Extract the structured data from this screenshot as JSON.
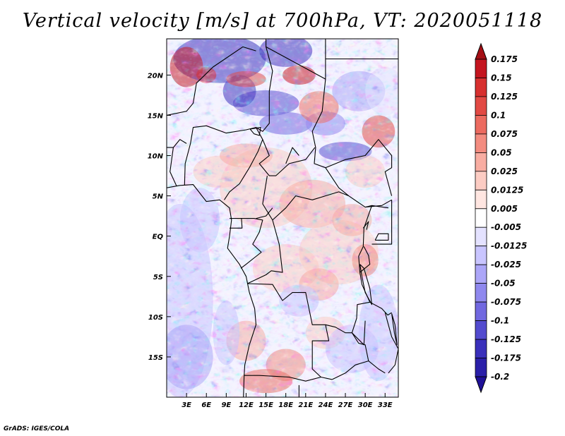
{
  "title": "Vertical velocity [m/s] at 700hPa, VT: 2020051118",
  "footer": "GrADS: IGES/COLA",
  "map": {
    "lon_range": [
      0,
      35
    ],
    "lat_range": [
      -20,
      24.5
    ],
    "lon_ticks": [
      {
        "value": 3,
        "label": "3E"
      },
      {
        "value": 6,
        "label": "6E"
      },
      {
        "value": 9,
        "label": "9E"
      },
      {
        "value": 12,
        "label": "12E"
      },
      {
        "value": 15,
        "label": "15E"
      },
      {
        "value": 18,
        "label": "18E"
      },
      {
        "value": 21,
        "label": "21E"
      },
      {
        "value": 24,
        "label": "24E"
      },
      {
        "value": 27,
        "label": "27E"
      },
      {
        "value": 30,
        "label": "30E"
      },
      {
        "value": 33,
        "label": "33E"
      }
    ],
    "lat_ticks": [
      {
        "value": 20,
        "label": "20N"
      },
      {
        "value": 15,
        "label": "15N"
      },
      {
        "value": 10,
        "label": "10N"
      },
      {
        "value": 5,
        "label": "5N"
      },
      {
        "value": 0,
        "label": "EQ"
      },
      {
        "value": -5,
        "label": "5S"
      },
      {
        "value": -10,
        "label": "10S"
      },
      {
        "value": -15,
        "label": "15S"
      }
    ]
  },
  "colorbar": {
    "levels": [
      "0.175",
      "0.15",
      "0.125",
      "0.1",
      "0.075",
      "0.05",
      "0.025",
      "0.0125",
      "0.005",
      "-0.005",
      "-0.0125",
      "-0.025",
      "-0.05",
      "-0.075",
      "-0.1",
      "-0.125",
      "-0.175",
      "-0.2"
    ],
    "colors": [
      "#a50f15",
      "#c4151f",
      "#d7302f",
      "#e24a44",
      "#ec6b60",
      "#f38c80",
      "#f8ada2",
      "#fcccc3",
      "#ffe6e1",
      "#ffffff",
      "#e4e2ff",
      "#c9c5ff",
      "#aca6f8",
      "#8f88ee",
      "#7168e0",
      "#534bcf",
      "#3a30bb",
      "#2a1fa8",
      "#1f1097"
    ]
  },
  "map_colors": {
    "border": "#000000",
    "ocean_tint": "#a9a3f0"
  }
}
